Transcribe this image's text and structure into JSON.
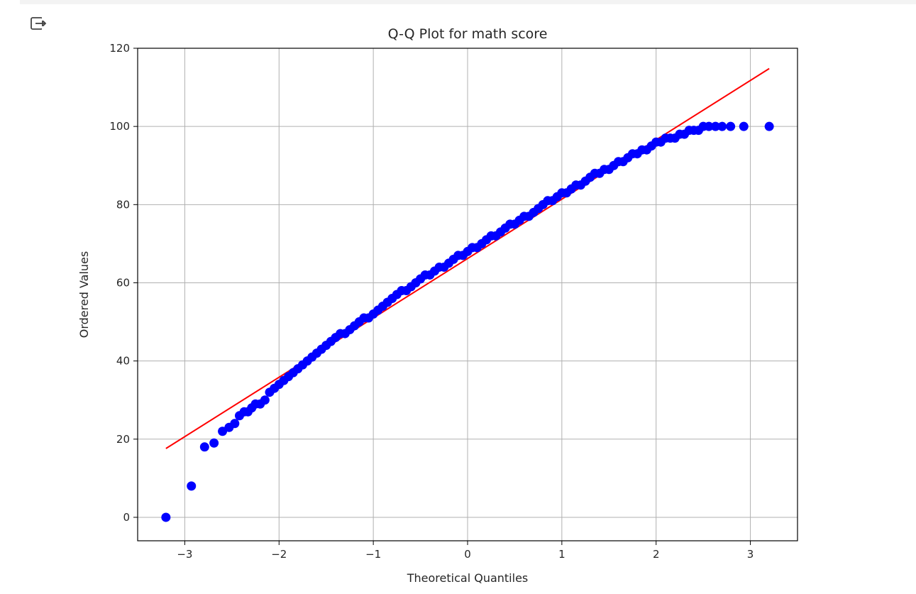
{
  "output": {
    "icon": "output-redirect-icon"
  },
  "chart_data": {
    "type": "scatter",
    "title": "Q-Q Plot for math score",
    "xlabel": "Theoretical Quantiles",
    "ylabel": "Ordered Values",
    "xlim": [
      -3.5,
      3.5
    ],
    "ylim": [
      -6,
      120
    ],
    "x_ticks": [
      -3,
      -2,
      -1,
      0,
      1,
      2,
      3
    ],
    "x_tick_labels": [
      "−3",
      "−2",
      "−1",
      "0",
      "1",
      "2",
      "3"
    ],
    "y_ticks": [
      0,
      20,
      40,
      60,
      80,
      100,
      120
    ],
    "y_tick_labels": [
      "0",
      "20",
      "40",
      "60",
      "80",
      "100",
      "120"
    ],
    "grid": true,
    "marker_color": "#0000ff",
    "line_color": "#ff0000",
    "fit_line": {
      "x": [
        -3.2,
        3.2
      ],
      "y": [
        17.6,
        114.8
      ]
    },
    "series": [
      {
        "x": [
          -3.2,
          -2.93,
          -2.79,
          -2.69,
          -2.6,
          -2.53,
          -2.47,
          -2.42,
          -2.37,
          -2.33,
          -2.29,
          -2.25,
          -2.2,
          -2.15,
          -2.1,
          -2.05,
          -2.0,
          -1.95,
          -1.9,
          -1.85,
          -1.8,
          -1.75,
          -1.7,
          -1.65,
          -1.6,
          -1.55,
          -1.5,
          -1.45,
          -1.4,
          -1.35,
          -1.3,
          -1.25,
          -1.2,
          -1.15,
          -1.1,
          -1.05,
          -1.0,
          -0.95,
          -0.9,
          -0.85,
          -0.8,
          -0.75,
          -0.7,
          -0.65,
          -0.6,
          -0.55,
          -0.5,
          -0.45,
          -0.4,
          -0.35,
          -0.3,
          -0.25,
          -0.2,
          -0.15,
          -0.1,
          -0.05,
          0.0,
          0.05,
          0.1,
          0.15,
          0.2,
          0.25,
          0.3,
          0.35,
          0.4,
          0.45,
          0.5,
          0.55,
          0.6,
          0.65,
          0.7,
          0.75,
          0.8,
          0.85,
          0.9,
          0.95,
          1.0,
          1.05,
          1.1,
          1.15,
          1.2,
          1.25,
          1.3,
          1.35,
          1.4,
          1.45,
          1.5,
          1.55,
          1.6,
          1.65,
          1.7,
          1.75,
          1.8,
          1.85,
          1.9,
          1.95,
          2.0,
          2.05,
          2.1,
          2.15,
          2.2,
          2.25,
          2.3,
          2.35,
          2.4,
          2.45,
          2.5,
          2.56,
          2.63,
          2.7,
          2.79,
          2.93,
          3.2
        ],
        "y": [
          0,
          8,
          18,
          19,
          22,
          23,
          24,
          26,
          27,
          27,
          28,
          29,
          29,
          30,
          32,
          33,
          34,
          35,
          36,
          37,
          38,
          39,
          40,
          41,
          42,
          43,
          44,
          45,
          46,
          47,
          47,
          48,
          49,
          50,
          51,
          51,
          52,
          53,
          54,
          55,
          56,
          57,
          58,
          58,
          59,
          60,
          61,
          62,
          62,
          63,
          64,
          64,
          65,
          66,
          67,
          67,
          68,
          69,
          69,
          70,
          71,
          72,
          72,
          73,
          74,
          75,
          75,
          76,
          77,
          77,
          78,
          79,
          80,
          81,
          81,
          82,
          83,
          83,
          84,
          85,
          85,
          86,
          87,
          88,
          88,
          89,
          89,
          90,
          91,
          91,
          92,
          93,
          93,
          94,
          94,
          95,
          96,
          96,
          97,
          97,
          97,
          98,
          98,
          99,
          99,
          99,
          100,
          100,
          100,
          100,
          100,
          100,
          100
        ]
      }
    ]
  }
}
